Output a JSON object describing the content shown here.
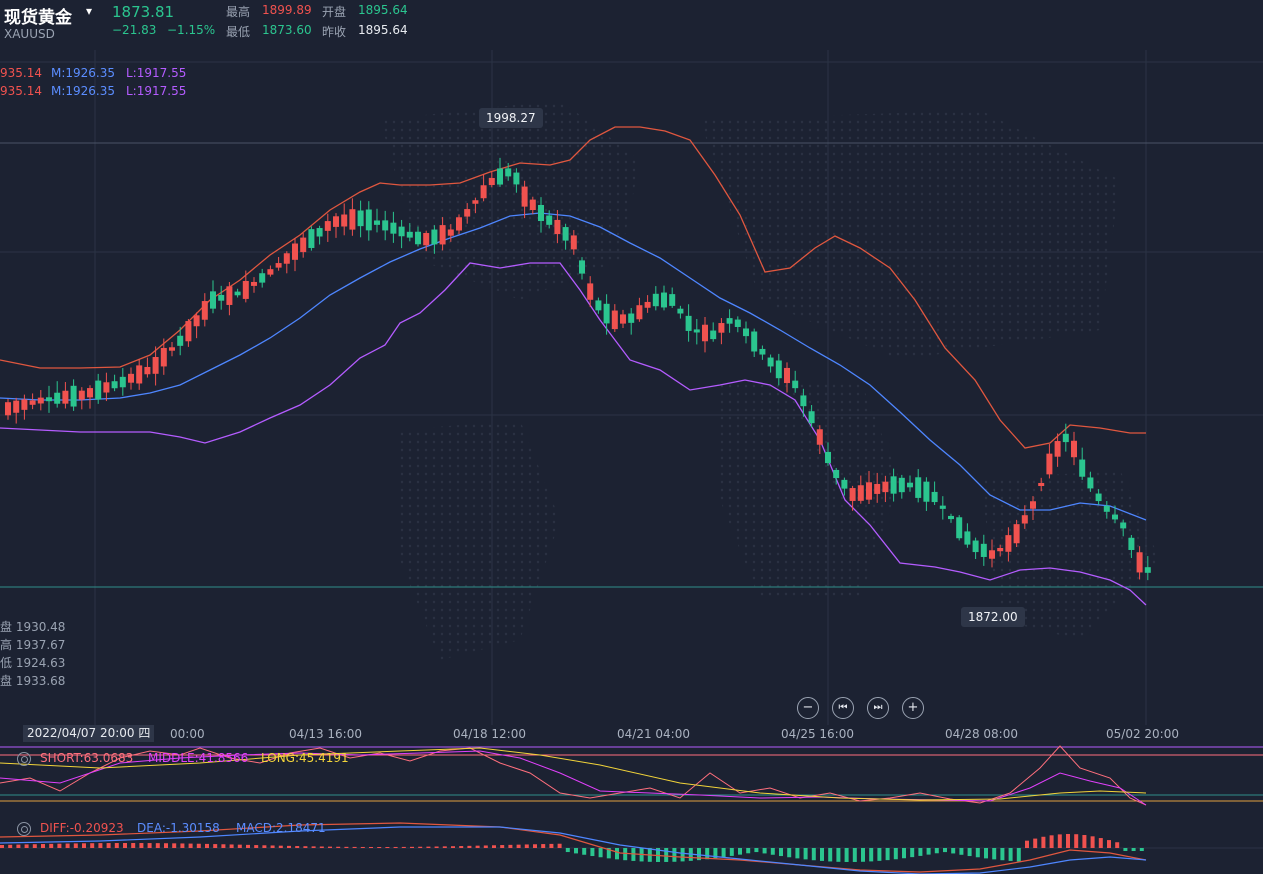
{
  "header": {
    "title": "现货黄金",
    "symbol": "XAUUSD",
    "last_price": "1873.81",
    "change": "−21.83",
    "change_pct": "−1.15%",
    "high_label": "最高",
    "high_value": "1899.89",
    "open_label": "开盘",
    "open_value": "1895.64",
    "low_label": "最低",
    "low_value": "1873.60",
    "prev_close_label": "昨收",
    "prev_close_value": "1895.64"
  },
  "indicators": {
    "boll_row1": {
      "u": "935.14",
      "m": "M:1926.35",
      "l": "L:1917.55"
    },
    "boll_row2": {
      "u": "935.14",
      "m": "M:1926.35",
      "l": "L:1917.55"
    }
  },
  "tooltips": {
    "high_marker": "1998.27",
    "low_marker": "1872.00"
  },
  "ohlc_panel": {
    "open": "盘 1930.48",
    "high": "高 1937.67",
    "low": "低 1924.63",
    "close": "盘 1933.68"
  },
  "controls": {
    "zoom_out": "−",
    "prev": "⏮",
    "next": "⏭",
    "zoom_in": "+"
  },
  "xaxis": {
    "selected_date": "2022/04/07 20:00 四",
    "labels": [
      "00:00",
      "04/13 16:00",
      "04/18 12:00",
      "04/21 04:00",
      "04/25 16:00",
      "04/28 08:00",
      "05/02 20:00"
    ]
  },
  "kdj": {
    "short": "SHORT:63.0683",
    "middle": "MIDDLE:41.8566",
    "long": "LONG:45.4191"
  },
  "macd": {
    "diff": "DIFF:-0.20923",
    "dea": "DEA:-1.30158",
    "macd": "MACD:2.18471"
  },
  "colors": {
    "background": "#1c2232",
    "up": "#f0524f",
    "down": "#2bc58f",
    "boll_upper": "#e0573f",
    "boll_mid": "#4e86ff",
    "boll_lower": "#b45cff"
  }
}
